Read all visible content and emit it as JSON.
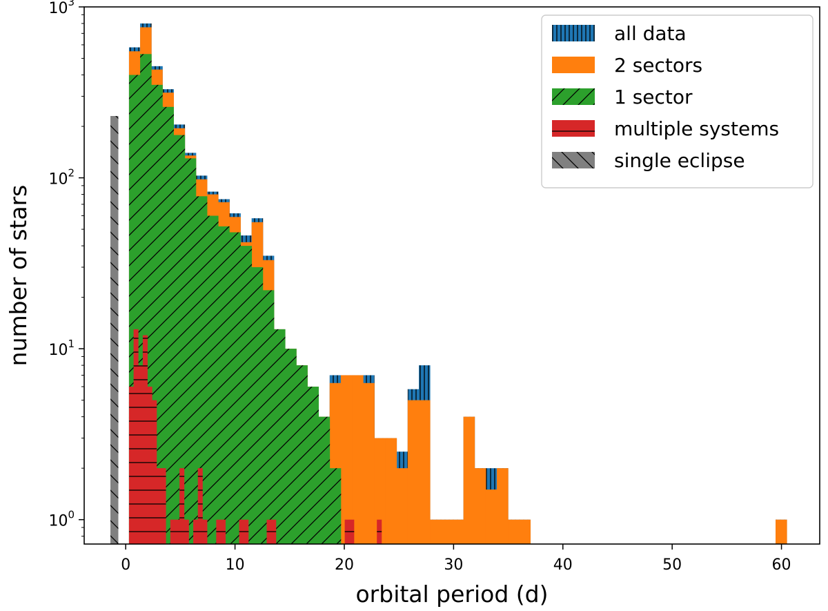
{
  "chart_data": {
    "type": "bar",
    "subtype": "step-histogram-overlay",
    "title": "",
    "xlabel": "orbital period (d)",
    "ylabel": "number of stars",
    "xscale": "linear",
    "yscale": "log",
    "xlim": [
      -3.8,
      63.5
    ],
    "ylim": [
      0.72,
      1000
    ],
    "xticks": [
      0,
      10,
      20,
      30,
      40,
      50,
      60
    ],
    "xtick_labels": [
      "0",
      "10",
      "20",
      "30",
      "40",
      "50",
      "60"
    ],
    "yticks": [
      1,
      10,
      100,
      1000
    ],
    "ytick_labels": [
      {
        "base": "10",
        "exp": "0"
      },
      {
        "base": "10",
        "exp": "1"
      },
      {
        "base": "10",
        "exp": "2"
      },
      {
        "base": "10",
        "exp": "3"
      }
    ],
    "legend_position": "top-right",
    "bin_start": 0.3,
    "bin_width": 1.02,
    "series": [
      {
        "name": "all data",
        "color": "#1f77b4",
        "hatch": "vertical",
        "values": [
          580,
          800,
          450,
          330,
          205,
          140,
          103,
          83,
          75,
          62,
          46,
          58,
          35,
          13,
          10,
          8,
          6,
          4,
          7,
          7,
          7,
          7,
          3,
          3,
          2.5,
          5.8,
          8,
          1,
          1,
          1,
          4,
          2,
          2,
          2,
          1,
          1,
          0,
          0,
          0,
          0,
          0,
          0,
          0,
          0,
          0,
          0,
          0,
          0,
          0,
          0,
          0,
          0,
          0,
          0,
          0,
          0,
          0,
          0,
          1
        ]
      },
      {
        "name": "2 sectors",
        "color": "#ff7f0e",
        "hatch": "none",
        "values": [
          550,
          760,
          430,
          315,
          195,
          135,
          98,
          80,
          72,
          59,
          42,
          55,
          33,
          13,
          10,
          8,
          6,
          4,
          6.3,
          7,
          7,
          6.3,
          3,
          3,
          2,
          5,
          5,
          1,
          1,
          1,
          4,
          2,
          1.5,
          2,
          1,
          1,
          0,
          0,
          0,
          0,
          0,
          0,
          0,
          0,
          0,
          0,
          0,
          0,
          0,
          0,
          0,
          0,
          0,
          0,
          0,
          0,
          0,
          0,
          1
        ]
      },
      {
        "name": "1 sector",
        "color": "#2ca02c",
        "hatch": "diagonal",
        "values": [
          400,
          530,
          350,
          260,
          178,
          130,
          78,
          60,
          52,
          48,
          40,
          30,
          22,
          13,
          10,
          8,
          6,
          4,
          2
        ]
      },
      {
        "name": "multiple systems",
        "color": "#d62728",
        "hatch": "horizontal",
        "values": [
          6,
          13,
          8,
          12,
          6,
          5,
          2,
          2,
          0,
          1,
          1,
          2,
          1,
          0,
          1,
          2,
          1,
          0,
          0,
          1,
          1,
          0,
          0,
          0,
          1,
          1,
          0,
          0,
          0,
          0,
          1,
          1,
          0,
          0,
          0,
          0,
          0,
          0,
          0,
          0,
          0,
          0,
          0,
          0,
          0,
          0,
          0,
          1,
          1,
          0,
          0,
          0,
          0,
          0,
          1
        ],
        "bin_start": 0.3,
        "bin_width": 0.42
      },
      {
        "name": "single eclipse",
        "color": "#808080",
        "hatch": "back-diagonal",
        "values": [
          230
        ],
        "bin_start": -1.4,
        "bin_width": 0.7
      }
    ]
  }
}
